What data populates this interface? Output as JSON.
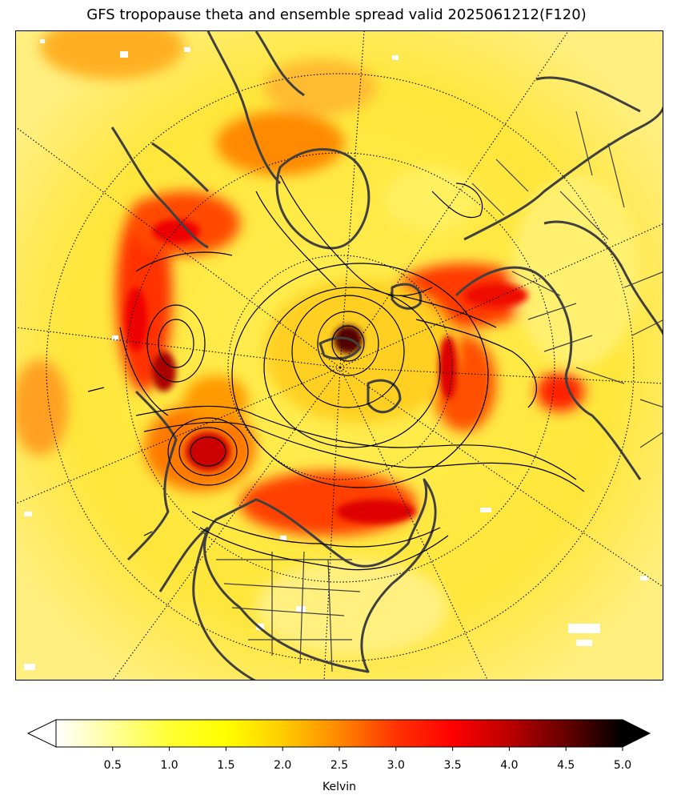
{
  "title": "GFS tropopause theta and ensemble spread valid 2025061212(F120)",
  "colorbar": {
    "label": "Kelvin",
    "ticks": [
      "0.5",
      "1.0",
      "1.5",
      "2.0",
      "2.5",
      "3.0",
      "3.5",
      "4.0",
      "4.5",
      "5.0"
    ],
    "min": 0.0,
    "max": 5.0,
    "extend": "both",
    "colormap": "hot_r",
    "stops": [
      "#ffffff",
      "#ffff99",
      "#ffff00",
      "#ffcc00",
      "#ff8800",
      "#ff3300",
      "#ff0000",
      "#cc0000",
      "#880000",
      "#330000",
      "#000000"
    ]
  },
  "map": {
    "projection": "north-polar-stereographic",
    "background_color": "#ffe14a",
    "coastline_color": "#404040",
    "contour_color": "#000000",
    "graticule": "dotted"
  }
}
